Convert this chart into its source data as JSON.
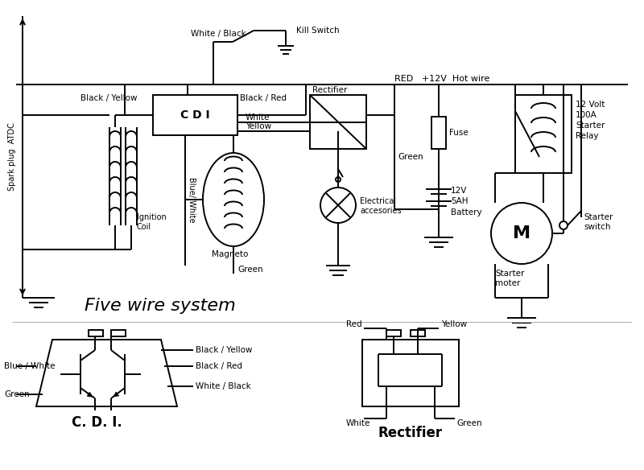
{
  "bg_color": "#ffffff",
  "line_color": "#000000",
  "title": "Five wire system",
  "bottom_cdi_label": "C. D. I.",
  "bottom_rect_label": "Rectifier"
}
